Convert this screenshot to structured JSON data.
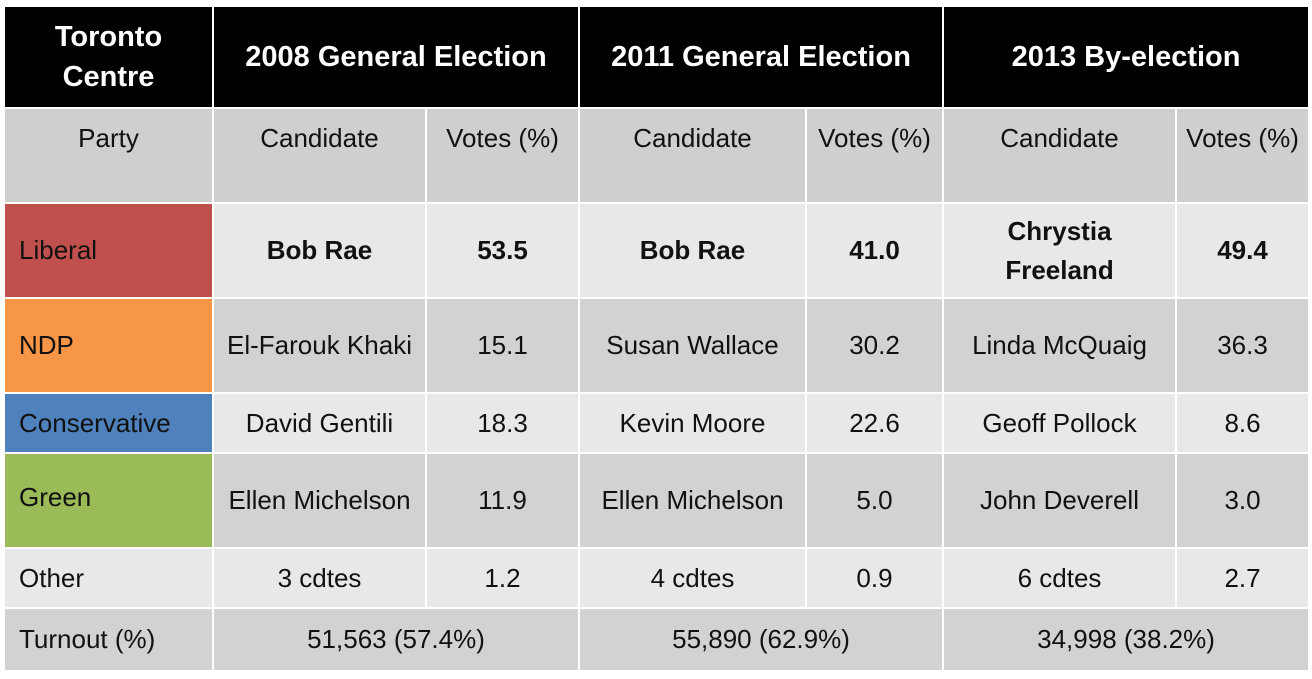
{
  "title_header": {
    "riding": "Toronto Centre",
    "e2008": "2008 General Election",
    "e2011": "2011 General Election",
    "e2013": "2013 By-election"
  },
  "col_headers": {
    "party": "Party",
    "candidate": "Candidate",
    "votes": "Votes (%)"
  },
  "parties": [
    {
      "party": "Liberal",
      "color": "#c0504d",
      "c2008": "Bob Rae",
      "v2008": "53.5",
      "c2011": "Bob Rae",
      "v2011": "41.0",
      "c2013": "Chrystia Freeland",
      "v2013": "49.4"
    },
    {
      "party": "NDP",
      "color": "#f79646",
      "c2008": "El-Farouk Khaki",
      "v2008": "15.1",
      "c2011": "Susan Wallace",
      "v2011": "30.2",
      "c2013": "Linda McQuaig",
      "v2013": "36.3"
    },
    {
      "party": "Conservative",
      "color": "#4f81bd",
      "c2008": "David Gentili",
      "v2008": "18.3",
      "c2011": "Kevin Moore",
      "v2011": "22.6",
      "c2013": "Geoff Pollock",
      "v2013": "8.6"
    },
    {
      "party": "Green",
      "color": "#9bbb59",
      "c2008": "Ellen Michelson",
      "v2008": "11.9",
      "c2011": "Ellen Michelson",
      "v2011": "5.0",
      "c2013": "John Deverell",
      "v2013": "3.0"
    },
    {
      "party": "Other",
      "color": "#e8e8e8",
      "c2008": "3 cdtes",
      "v2008": "1.2",
      "c2011": "4 cdtes",
      "v2011": "0.9",
      "c2013": "6 cdtes",
      "v2013": "2.7"
    }
  ],
  "turnout": {
    "label": "Turnout (%)",
    "t2008": "51,563 (57.4%)",
    "t2011": "55,890 (62.9%)",
    "t2013": "34,998 (38.2%)"
  }
}
